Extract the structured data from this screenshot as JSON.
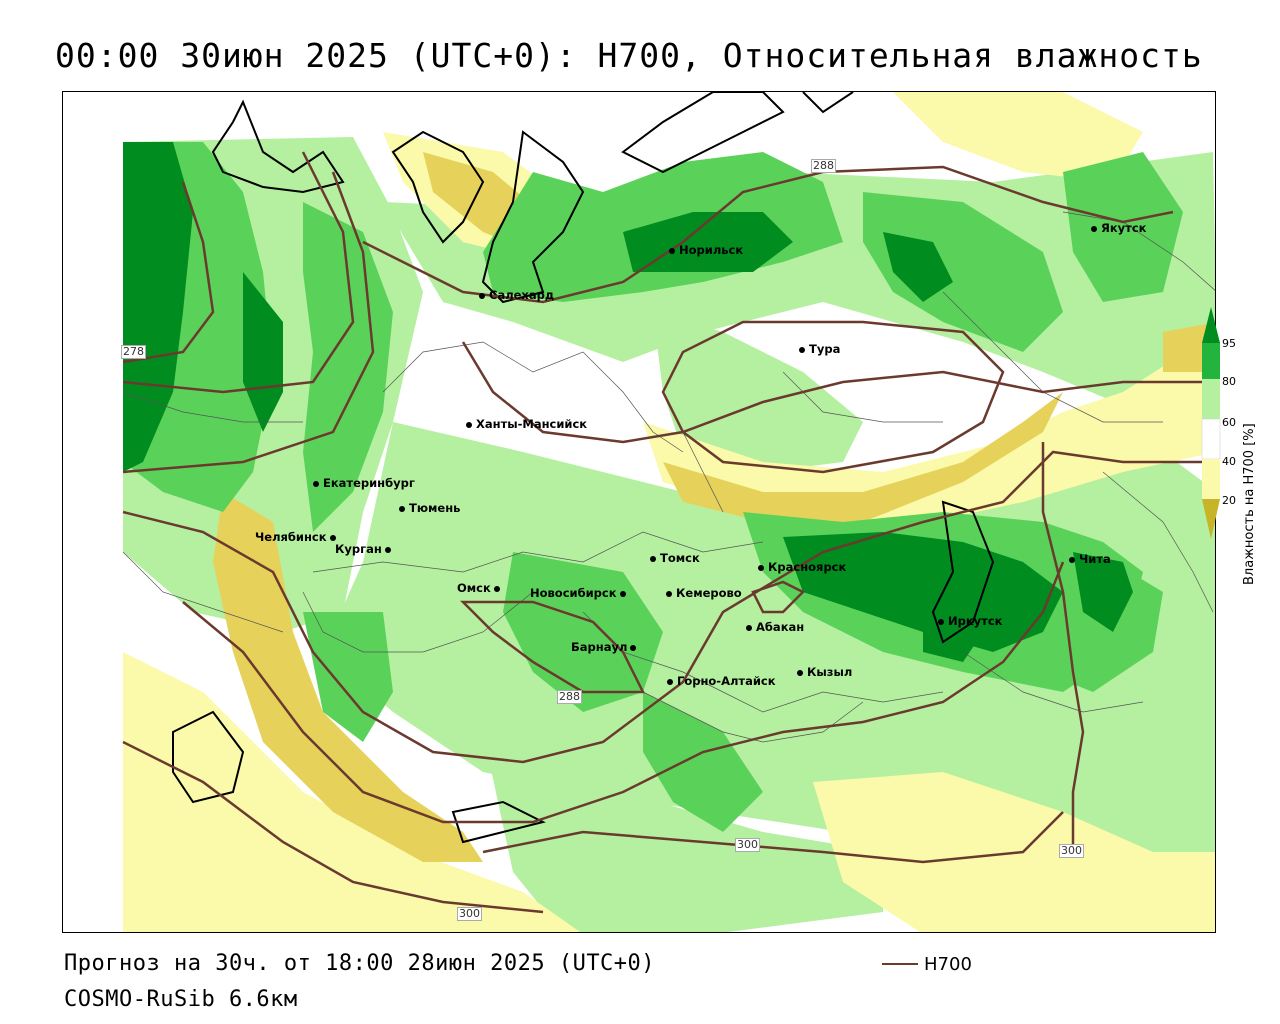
{
  "title": "00:00 30июн 2025 (UTC+0): H700, Относительная влажность",
  "footer": {
    "forecast_line": "Прогноз на 30ч. от 18:00 28июн 2025 (UTC+0)",
    "model_line": "COSMO-RuSib 6.6км",
    "line_legend_label": "H700"
  },
  "legend": {
    "title": "Влажность на H700 [%]",
    "ticks": [
      "95",
      "80",
      "60",
      "40",
      "20"
    ],
    "colors": {
      "dark_green": "#008c1e",
      "green": "#22b43c",
      "mid_green": "#5ad25a",
      "light_green": "#b4f0a0",
      "white": "#ffffff",
      "pale_yellow": "#fafaaa",
      "yellow": "#e6d25a",
      "dark_yellow": "#c8b428"
    }
  },
  "contour_color": "#6b3a2e",
  "contour_labels": [
    "278",
    "288",
    "288",
    "300",
    "300",
    "300"
  ],
  "cities": [
    "Якутск",
    "Норильск",
    "Салехард",
    "Тура",
    "Ханты-Мансийск",
    "Екатеринбург",
    "Тюмень",
    "Челябинск",
    "Курган",
    "Омск",
    "Новосибирск",
    "Томск",
    "Кемерово",
    "Красноярск",
    "Абакан",
    "Барнаул",
    "Горно-Алтайск",
    "Кызыл",
    "Иркутск",
    "Чита"
  ]
}
